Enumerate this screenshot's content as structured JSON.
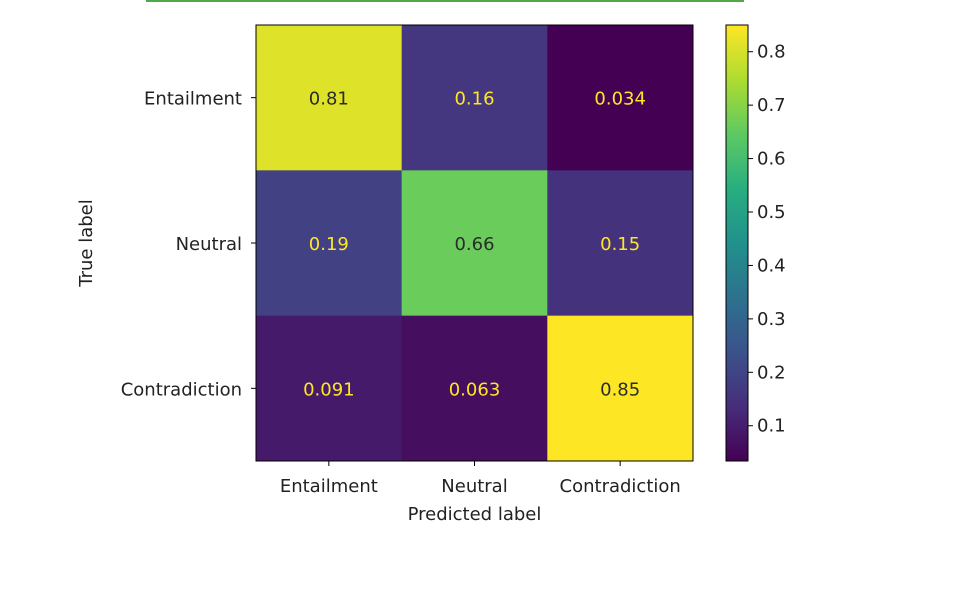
{
  "chart_data": {
    "type": "heatmap",
    "rows": [
      "Entailment",
      "Neutral",
      "Contradiction"
    ],
    "columns": [
      "Entailment",
      "Neutral",
      "Contradiction"
    ],
    "values": [
      [
        0.81,
        0.16,
        0.034
      ],
      [
        0.19,
        0.66,
        0.15
      ],
      [
        0.091,
        0.063,
        0.85
      ]
    ],
    "value_labels": [
      [
        "0.81",
        "0.16",
        "0.034"
      ],
      [
        "0.19",
        "0.66",
        "0.15"
      ],
      [
        "0.091",
        "0.063",
        "0.85"
      ]
    ],
    "xlabel": "Predicted label",
    "ylabel": "True label",
    "colormap": "viridis",
    "colorbar": {
      "range": [
        0.034,
        0.85
      ],
      "ticks": [
        0.1,
        0.2,
        0.3,
        0.4,
        0.5,
        0.6,
        0.7,
        0.8
      ],
      "tick_labels": [
        "0.1",
        "0.2",
        "0.3",
        "0.4",
        "0.5",
        "0.6",
        "0.7",
        "0.8"
      ]
    },
    "text_color_on_dark": "#fde725",
    "text_color_on_light": "#2b2b2b"
  }
}
